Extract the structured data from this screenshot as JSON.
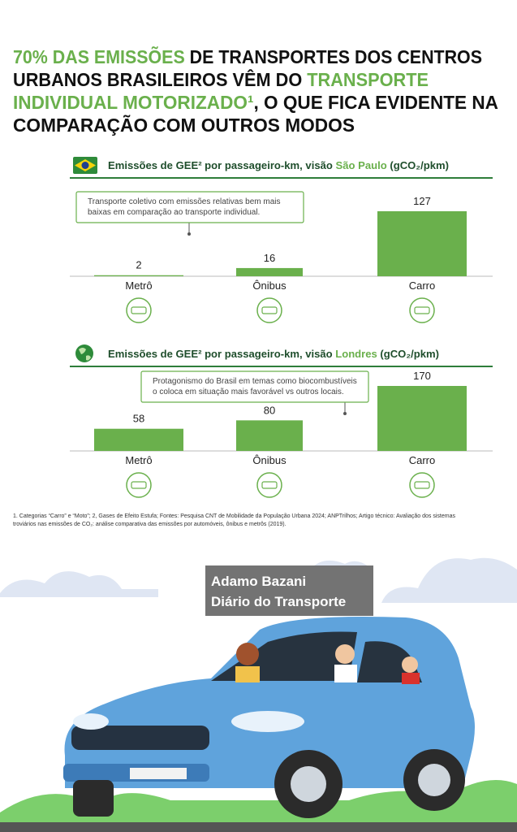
{
  "headline": [
    [
      {
        "text": "70% DAS EMISSÕES",
        "color": "#6ab04c"
      },
      {
        "text": " DE TRANSPORTES DOS CENTROS",
        "color": "#111111"
      }
    ],
    [
      {
        "text": "URBANOS BRASILEIROS VÊM DO ",
        "color": "#111111"
      },
      {
        "text": "TRANSPORTE",
        "color": "#6ab04c"
      }
    ],
    [
      {
        "text": "INDIVIDUAL MOTORIZADO¹",
        "color": "#6ab04c"
      },
      {
        "text": ", O QUE FICA EVIDENTE NA",
        "color": "#111111"
      }
    ],
    [
      {
        "text": "COMPARAÇÃO COM OUTROS MODOS",
        "color": "#111111"
      }
    ]
  ],
  "chart_data": [
    {
      "type": "bar",
      "title_parts": [
        {
          "text": "Emissões de GEE² por passageiro-km, visão ",
          "color": "#1f4e2c"
        },
        {
          "text": "São Paulo",
          "color": "#6ab04c"
        },
        {
          "text": " (gCO₂/pkm)",
          "color": "#1f4e2c"
        }
      ],
      "categories": [
        "Metrô",
        "Ônibus",
        "Carro"
      ],
      "values": [
        2,
        16,
        127
      ],
      "color": "#6ab04c",
      "annotation": [
        "Transporte coletivo com emissões relativas bem mais",
        "baixas em comparação ao transporte individual."
      ]
    },
    {
      "type": "bar",
      "title_parts": [
        {
          "text": "Emissões de GEE² por passageiro-km, visão ",
          "color": "#1f4e2c"
        },
        {
          "text": "Londres",
          "color": "#6ab04c"
        },
        {
          "text": " (gCO₂/pkm)",
          "color": "#1f4e2c"
        }
      ],
      "categories": [
        "Metrô",
        "Ônibus",
        "Carro"
      ],
      "values": [
        58,
        80,
        170
      ],
      "color": "#6ab04c",
      "annotation": [
        "Protagonismo do Brasil em temas como biocombustíveis",
        "o coloca em situação mais favorável vs outros locais."
      ]
    }
  ],
  "footnote": [
    "1. Categorias “Carro” e “Moto”; 2, Gases de Efeito Estufa; Fontes: Pesquisa CNT de Mobilidade da População Urbana 2024; ANPTrilhos; Artigo técnico: Avaliação dos sistemas",
    "troviários nas emissões de CO₂: análise comparativa das emissões por automóveis, ônibus e metrôs (2019)."
  ],
  "credit": [
    "Adamo Bazani",
    "Diário do Transporte"
  ]
}
